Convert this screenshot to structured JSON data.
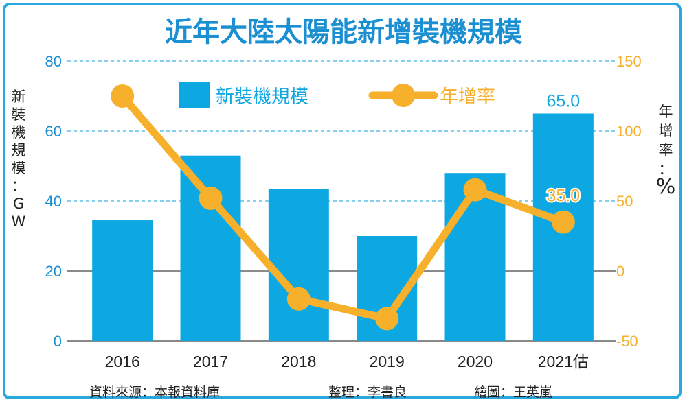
{
  "title": "近年大陸太陽能新增裝機規模",
  "footer": {
    "source": "資料來源：本報資料庫",
    "editor": "整理：李書良",
    "artist": "繪圖：王英嵐"
  },
  "colors": {
    "bar": "#0da7e2",
    "line": "#f7b02b",
    "left_axis_text": "#1a8fd1",
    "right_axis_text": "#f7b02b",
    "title": "#1a8fd1",
    "grid": "#5fc0ea",
    "zero_line": "#8a8a8a"
  },
  "chart_data": {
    "type": "bar",
    "categories": [
      "2016",
      "2017",
      "2018",
      "2019",
      "2020",
      "2021估"
    ],
    "series": [
      {
        "name": "新裝機規模",
        "type": "bar",
        "axis": "left",
        "values": [
          34.5,
          53,
          43.5,
          30,
          48,
          65.0
        ]
      },
      {
        "name": "年增率",
        "type": "line",
        "axis": "right",
        "values": [
          125,
          52,
          -20,
          -34,
          58,
          35.0
        ]
      }
    ],
    "ylabel": "新裝機規模：GW",
    "ylabel_right": "年增率：%",
    "ylim": [
      0,
      80
    ],
    "ylim_right": [
      -50,
      150
    ],
    "yticks": [
      0,
      20,
      40,
      60,
      80
    ],
    "yticks_right": [
      -50,
      0,
      50,
      100,
      150
    ],
    "data_labels": [
      {
        "series": "新裝機規模",
        "category": "2021估",
        "text": "65.0"
      },
      {
        "series": "年增率",
        "category": "2021估",
        "text": "35.0"
      }
    ],
    "legend": "top",
    "grid": true
  }
}
